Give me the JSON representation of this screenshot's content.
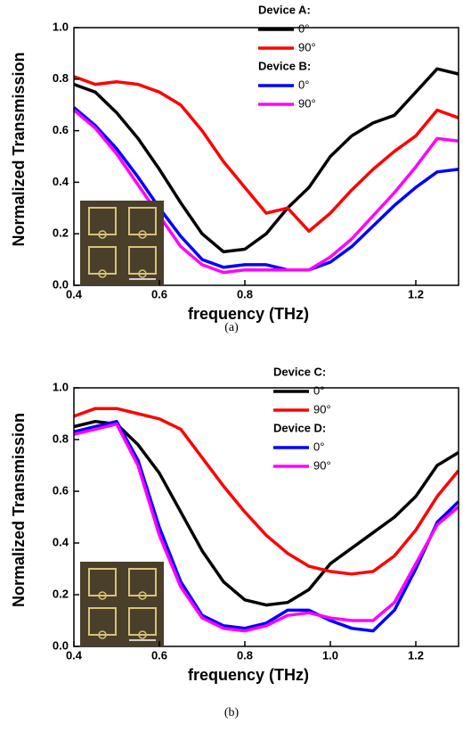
{
  "chart_data": [
    {
      "type": "line",
      "caption": "(a)",
      "xlabel": "frequency (THz)",
      "ylabel": "Normalized Transmission",
      "x": [
        0.4,
        0.45,
        0.5,
        0.55,
        0.6,
        0.65,
        0.7,
        0.75,
        0.8,
        0.85,
        0.9,
        0.95,
        1.0,
        1.05,
        1.1,
        1.15,
        1.2,
        1.25,
        1.3
      ],
      "xlim": [
        0.4,
        1.3
      ],
      "xticks": [
        0.4,
        0.6,
        0.8,
        1.2
      ],
      "ylim": [
        0,
        1
      ],
      "yticks": [
        {
          "value": 0,
          "label": "0.0"
        },
        0.2,
        0.4,
        0.6,
        0.8,
        {
          "value": 1,
          "label": "1.0"
        }
      ],
      "series_groups": [
        {
          "name": "Device A:",
          "series": [
            {
              "name": "0°",
              "color": "#000000",
              "values": [
                0.78,
                0.75,
                0.67,
                0.57,
                0.45,
                0.32,
                0.2,
                0.13,
                0.14,
                0.2,
                0.3,
                0.38,
                0.5,
                0.58,
                0.63,
                0.66,
                0.75,
                0.84,
                0.82
              ]
            },
            {
              "name": "90°",
              "color": "#ff0000",
              "values": [
                0.81,
                0.78,
                0.79,
                0.78,
                0.75,
                0.7,
                0.6,
                0.48,
                0.38,
                0.28,
                0.3,
                0.21,
                0.28,
                0.37,
                0.45,
                0.52,
                0.58,
                0.68,
                0.65
              ]
            }
          ]
        },
        {
          "name": "Device B:",
          "series": [
            {
              "name": "0°",
              "color": "#0000ff",
              "values": [
                0.69,
                0.62,
                0.53,
                0.42,
                0.3,
                0.19,
                0.1,
                0.07,
                0.08,
                0.08,
                0.06,
                0.06,
                0.09,
                0.15,
                0.23,
                0.31,
                0.38,
                0.44,
                0.45
              ]
            },
            {
              "name": "90°",
              "color": "#ff00ff",
              "values": [
                0.68,
                0.61,
                0.51,
                0.39,
                0.27,
                0.15,
                0.08,
                0.05,
                0.06,
                0.06,
                0.06,
                0.06,
                0.11,
                0.18,
                0.27,
                0.36,
                0.46,
                0.57,
                0.56
              ]
            }
          ]
        }
      ]
    },
    {
      "type": "line",
      "caption": "(b)",
      "xlabel": "frequency (THz)",
      "ylabel": "Normalized Transmission",
      "x": [
        0.4,
        0.45,
        0.5,
        0.55,
        0.6,
        0.65,
        0.7,
        0.75,
        0.8,
        0.85,
        0.9,
        0.95,
        1.0,
        1.05,
        1.1,
        1.15,
        1.2,
        1.25,
        1.3
      ],
      "xlim": [
        0.4,
        1.3
      ],
      "xticks": [
        0.4,
        0.6,
        0.8,
        {
          "value": 1,
          "label": "1.0"
        },
        1.2
      ],
      "ylim": [
        0,
        1
      ],
      "yticks": [
        {
          "value": 0,
          "label": "0.0"
        },
        0.2,
        0.4,
        0.6,
        0.8,
        {
          "value": 1,
          "label": "1.0"
        }
      ],
      "series_groups": [
        {
          "name": "Device C:",
          "series": [
            {
              "name": "0°",
              "color": "#000000",
              "values": [
                0.85,
                0.87,
                0.86,
                0.78,
                0.67,
                0.52,
                0.37,
                0.25,
                0.18,
                0.16,
                0.17,
                0.22,
                0.32,
                0.38,
                0.44,
                0.5,
                0.58,
                0.7,
                0.75
              ]
            },
            {
              "name": "90°",
              "color": "#ff0000",
              "values": [
                0.89,
                0.92,
                0.92,
                0.9,
                0.88,
                0.84,
                0.73,
                0.62,
                0.52,
                0.43,
                0.36,
                0.31,
                0.29,
                0.28,
                0.29,
                0.35,
                0.45,
                0.58,
                0.68
              ]
            }
          ]
        },
        {
          "name": "Device D:",
          "series": [
            {
              "name": "0°",
              "color": "#0000ff",
              "values": [
                0.83,
                0.85,
                0.87,
                0.72,
                0.46,
                0.25,
                0.12,
                0.08,
                0.07,
                0.09,
                0.14,
                0.14,
                0.1,
                0.07,
                0.06,
                0.14,
                0.3,
                0.48,
                0.56
              ]
            },
            {
              "name": "90°",
              "color": "#ff00ff",
              "values": [
                0.82,
                0.84,
                0.86,
                0.7,
                0.43,
                0.23,
                0.11,
                0.07,
                0.06,
                0.08,
                0.12,
                0.13,
                0.11,
                0.1,
                0.1,
                0.17,
                0.32,
                0.47,
                0.54
              ]
            }
          ]
        }
      ]
    }
  ]
}
